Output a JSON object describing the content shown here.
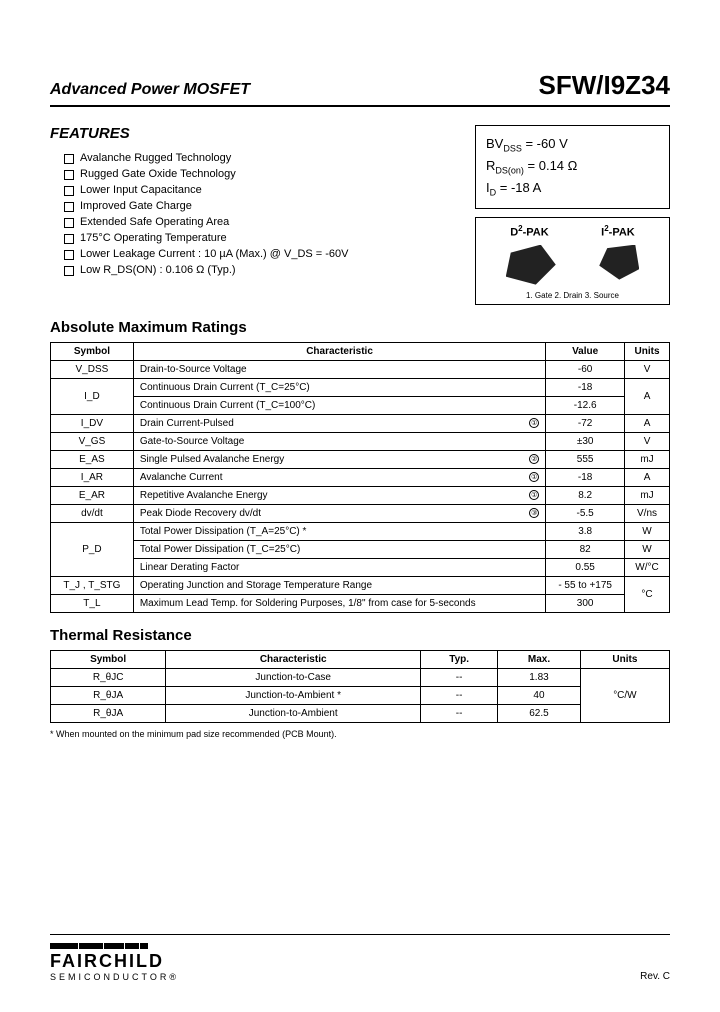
{
  "header": {
    "product_type": "Advanced Power MOSFET",
    "part_number": "SFW/I9Z34"
  },
  "features": {
    "title": "FEATURES",
    "items": [
      "Avalanche Rugged Technology",
      "Rugged Gate Oxide Technology",
      "Lower Input Capacitance",
      "Improved Gate Charge",
      "Extended Safe Operating Area",
      "175°C Operating Temperature",
      "Lower Leakage Current : 10 µA (Max.) @ V_DS = -60V",
      "Low R_DS(ON) : 0.106 Ω (Typ.)"
    ]
  },
  "specbox": {
    "line1_label": "BV",
    "line1_sub": "DSS",
    "line1_val": " = -60 V",
    "line2_label": "R",
    "line2_sub": "DS(on)",
    "line2_val": " = 0.14 Ω",
    "line3_label": "I",
    "line3_sub": "D",
    "line3_val": " = -18 A"
  },
  "pkgbox": {
    "label1": "D",
    "label1_sup": "2",
    "label1_suffix": "-PAK",
    "label2": "I",
    "label2_sup": "2",
    "label2_suffix": "-PAK",
    "pins": "1. Gate  2. Drain  3. Source"
  },
  "ratings": {
    "title": "Absolute Maximum Ratings",
    "headers": [
      "Symbol",
      "Characteristic",
      "Value",
      "Units"
    ],
    "rows": [
      {
        "sym": "V_DSS",
        "char": "Drain-to-Source Voltage",
        "note": "",
        "val": "-60",
        "unit": "V",
        "rowspan_sym": 1,
        "rowspan_unit": 1
      },
      {
        "sym": "I_D",
        "char": "Continuous Drain Current (T_C=25°C)",
        "note": "",
        "val": "-18",
        "unit": "A",
        "rowspan_sym": 2,
        "rowspan_unit": 2
      },
      {
        "sym": "",
        "char": "Continuous Drain Current (T_C=100°C)",
        "note": "",
        "val": "-12.6",
        "unit": ""
      },
      {
        "sym": "I_DV",
        "char": "Drain Current-Pulsed",
        "note": "①",
        "val": "-72",
        "unit": "A",
        "rowspan_sym": 1,
        "rowspan_unit": 1
      },
      {
        "sym": "V_GS",
        "char": "Gate-to-Source Voltage",
        "note": "",
        "val": "±30",
        "unit": "V",
        "rowspan_sym": 1,
        "rowspan_unit": 1
      },
      {
        "sym": "E_AS",
        "char": "Single Pulsed Avalanche Energy",
        "note": "②",
        "val": "555",
        "unit": "mJ",
        "rowspan_sym": 1,
        "rowspan_unit": 1
      },
      {
        "sym": "I_AR",
        "char": "Avalanche Current",
        "note": "①",
        "val": "-18",
        "unit": "A",
        "rowspan_sym": 1,
        "rowspan_unit": 1
      },
      {
        "sym": "E_AR",
        "char": "Repetitive Avalanche Energy",
        "note": "①",
        "val": "8.2",
        "unit": "mJ",
        "rowspan_sym": 1,
        "rowspan_unit": 1
      },
      {
        "sym": "dv/dt",
        "char": "Peak Diode Recovery dv/dt",
        "note": "③",
        "val": "-5.5",
        "unit": "V/ns",
        "rowspan_sym": 1,
        "rowspan_unit": 1
      },
      {
        "sym": "P_D",
        "char": "Total Power Dissipation (T_A=25°C) *",
        "note": "",
        "val": "3.8",
        "unit": "W",
        "rowspan_sym": 3,
        "rowspan_unit": 1
      },
      {
        "sym": "",
        "char": "Total Power Dissipation (T_C=25°C)",
        "note": "",
        "val": "82",
        "unit": "W",
        "rowspan_unit": 1
      },
      {
        "sym": "",
        "char": "Linear Derating Factor",
        "note": "",
        "val": "0.55",
        "unit": "W/°C",
        "rowspan_unit": 1
      },
      {
        "sym": "T_J , T_STG",
        "char": "Operating Junction and Storage Temperature Range",
        "note": "",
        "val": "- 55 to +175",
        "unit": "°C",
        "rowspan_sym": 1,
        "rowspan_unit": 2
      },
      {
        "sym": "T_L",
        "char": "Maximum Lead Temp. for Soldering Purposes, 1/8\" from case for 5-seconds",
        "note": "",
        "val": "300",
        "unit": "",
        "rowspan_sym": 1
      }
    ]
  },
  "thermal": {
    "title": "Thermal Resistance",
    "headers": [
      "Symbol",
      "Characteristic",
      "Typ.",
      "Max.",
      "Units"
    ],
    "rows": [
      {
        "sym": "R_θJC",
        "char": "Junction-to-Case",
        "typ": "--",
        "max": "1.83"
      },
      {
        "sym": "R_θJA",
        "char": "Junction-to-Ambient *",
        "typ": "--",
        "max": "40"
      },
      {
        "sym": "R_θJA",
        "char": "Junction-to-Ambient",
        "typ": "--",
        "max": "62.5"
      }
    ],
    "unit": "°C/W"
  },
  "footnote": "* When mounted on the minimum pad size recommended (PCB Mount).",
  "footer": {
    "logo_text": "FAIRCHILD",
    "logo_sub": "SEMICONDUCTOR®",
    "rev": "Rev. C"
  }
}
